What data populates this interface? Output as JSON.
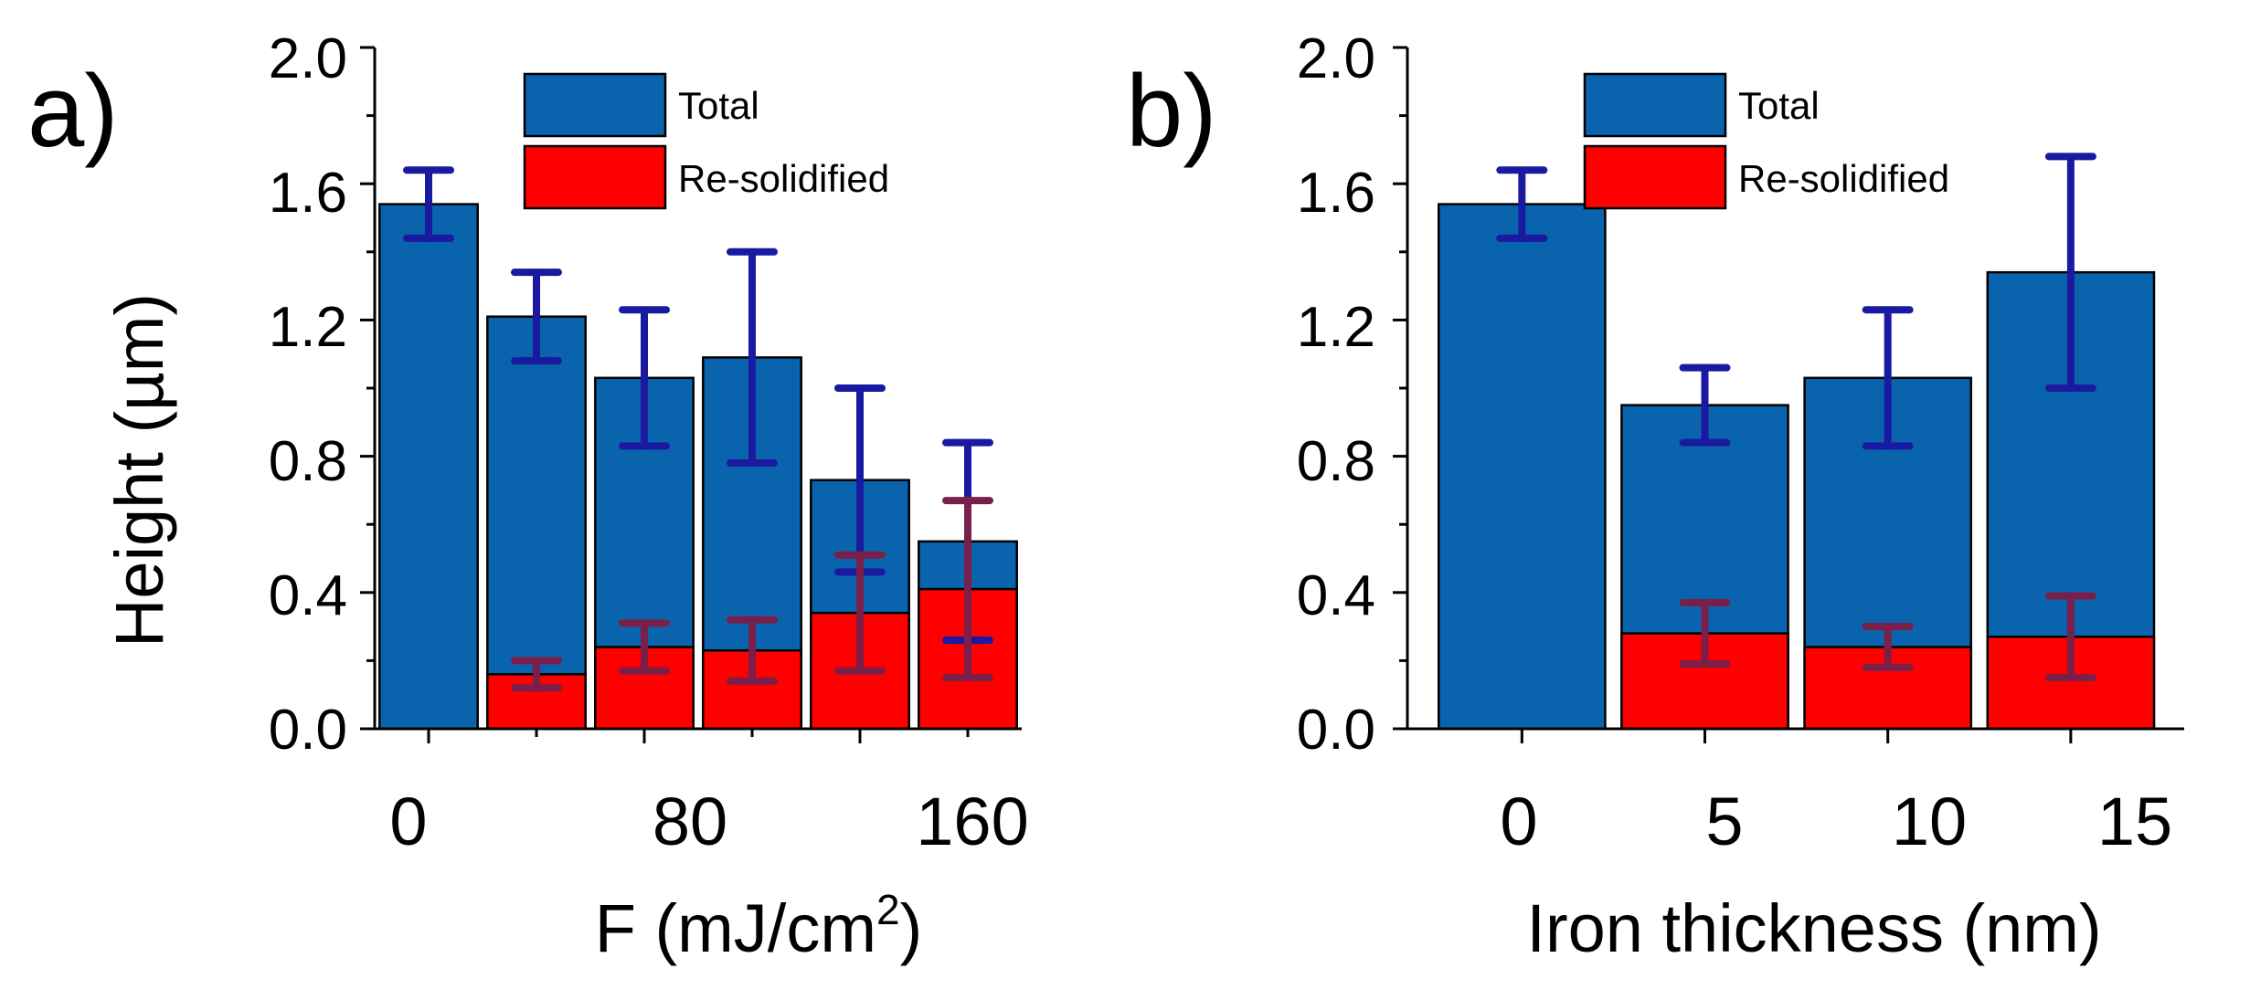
{
  "chart_data": [
    {
      "panel_label": "a)",
      "type": "bar",
      "mode": "overlay",
      "ylabel": "Height (µm)",
      "xlabel_main": "F (mJ/cm",
      "xlabel_sup": "2",
      "xlabel_tail": ")",
      "ylim": [
        0.0,
        2.0
      ],
      "yticks": [
        "0.0",
        "0.4",
        "0.8",
        "1.2",
        "1.6",
        "2.0"
      ],
      "x": [
        0,
        40,
        80,
        120,
        160,
        200
      ],
      "xlim": [
        -20,
        220
      ],
      "xticks": [
        0,
        80,
        160
      ],
      "xtick_labels": [
        "0",
        "80",
        "160"
      ],
      "series": [
        {
          "name": "Total",
          "color": "#0a64ad",
          "error_color": "#1a1aa0",
          "values": [
            1.54,
            1.21,
            1.03,
            1.09,
            0.73,
            0.55
          ],
          "errors": [
            0.1,
            0.13,
            0.2,
            0.31,
            0.27,
            0.29
          ]
        },
        {
          "name": "Re-solidified",
          "color": "#ff0000",
          "error_color": "#7a1f4a",
          "values": [
            null,
            0.16,
            0.24,
            0.23,
            0.34,
            0.41
          ],
          "errors": [
            null,
            0.04,
            0.07,
            0.09,
            0.17,
            0.26
          ]
        }
      ],
      "legend": {
        "position": "top-center",
        "entries": [
          "Total",
          "Re-solidified"
        ]
      }
    },
    {
      "panel_label": "b)",
      "type": "bar",
      "mode": "overlay",
      "ylabel": "",
      "xlabel_main": "Iron thickness (nm)",
      "xlabel_sup": "",
      "xlabel_tail": "",
      "ylim": [
        0.0,
        2.0
      ],
      "yticks": [
        "0.0",
        "0.4",
        "0.8",
        "1.2",
        "1.6",
        "2.0"
      ],
      "x": [
        0,
        5,
        10,
        15
      ],
      "xlim": [
        -3.13,
        18.1
      ],
      "xticks": [
        0,
        5,
        10,
        15
      ],
      "xtick_labels": [
        "0",
        "5",
        "10",
        "15"
      ],
      "series": [
        {
          "name": "Total",
          "color": "#0a64ad",
          "error_color": "#1a1aa0",
          "values": [
            1.54,
            0.95,
            1.03,
            1.34
          ],
          "errors": [
            0.1,
            0.11,
            0.2,
            0.34
          ]
        },
        {
          "name": "Re-solidified",
          "color": "#ff0000",
          "error_color": "#7a1f4a",
          "values": [
            null,
            0.28,
            0.24,
            0.27
          ],
          "errors": [
            null,
            0.09,
            0.06,
            0.12
          ]
        }
      ],
      "legend": {
        "position": "top-center",
        "entries": [
          "Total",
          "Re-solidified"
        ]
      }
    }
  ]
}
